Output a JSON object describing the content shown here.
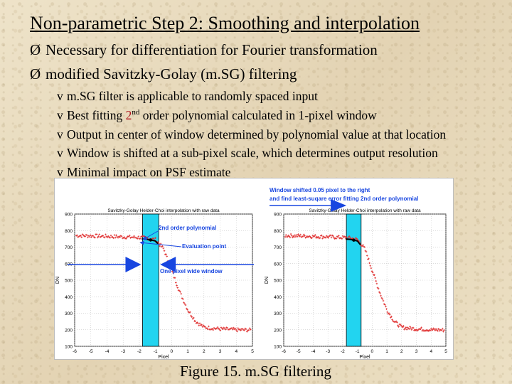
{
  "slide": {
    "title": "Non-parametric Step 2:  Smoothing and interpolation",
    "bullets": [
      {
        "marker": "Ø",
        "text": "Necessary for differentiation for Fourier transformation"
      },
      {
        "marker": "Ø",
        "text": "modified Savitzky-Golay (m.SG) filtering"
      }
    ],
    "subbullets": [
      {
        "marker": "v",
        "text": "m.SG filter is applicable to randomly spaced input"
      },
      {
        "marker": "v",
        "pre": "Best fitting ",
        "red": "2",
        "sup": "nd",
        "post": " order polynomial calculated in 1-pixel window"
      },
      {
        "marker": "v",
        "text": "Output in center of window determined by polynomial value at that location"
      },
      {
        "marker": "v",
        "text": "Window is shifted at a sub-pixel scale, which determines output resolution"
      },
      {
        "marker": "v",
        "text": "Minimal impact on PSF estimate"
      }
    ],
    "caption": "Figure 15. m.SG filtering"
  },
  "figure": {
    "top_annotation": [
      "Window shifted 0.05 pixel to the right",
      "and find least-suqare error fitting 2nd order polynomial"
    ],
    "left_annotations": {
      "poly": "2nd order polynomial",
      "eval": "Evaluation point",
      "window": "One pixel wide window"
    },
    "colors": {
      "data": "#e03030",
      "window": "#22d4f0",
      "annotation": "#1846e0",
      "fit": "#000000"
    }
  },
  "chart_data": [
    {
      "type": "scatter",
      "title": "Savitzky-Golay Helder-Choi interpolation with raw data",
      "xlabel": "Pixel",
      "ylabel": "DN",
      "xlim": [
        -6,
        5
      ],
      "ylim": [
        100,
        900
      ],
      "xticks": [
        "-6",
        "-5",
        "-4",
        "-3",
        "-2",
        "-1",
        "0",
        "1",
        "2",
        "3",
        "4",
        "5"
      ],
      "yticks": [
        "100",
        "200",
        "300",
        "400",
        "500",
        "600",
        "700",
        "800",
        "900"
      ],
      "grid": true,
      "window": [
        -1.8,
        -0.8
      ],
      "series": [
        {
          "x": [
            -6,
            -5,
            -4,
            -3,
            -2,
            -1.5,
            -1,
            -0.5,
            0,
            0.5,
            1,
            1.5,
            2,
            3,
            4,
            5
          ],
          "y": [
            770,
            768,
            765,
            762,
            758,
            755,
            745,
            690,
            560,
            430,
            320,
            250,
            215,
            205,
            200,
            198
          ]
        }
      ]
    },
    {
      "type": "scatter",
      "title": "Savitzky-Golay Helder-Choi interpolation with raw data",
      "xlabel": "Pixel",
      "ylabel": "DN",
      "xlim": [
        -6,
        5
      ],
      "ylim": [
        100,
        900
      ],
      "xticks": [
        "-6",
        "-5",
        "-4",
        "-3",
        "-2",
        "-1",
        "0",
        "1",
        "2",
        "3",
        "4",
        "5"
      ],
      "yticks": [
        "100",
        "200",
        "300",
        "400",
        "500",
        "600",
        "700",
        "800",
        "900"
      ],
      "grid": true,
      "window": [
        -1.75,
        -0.75
      ],
      "series": [
        {
          "x": [
            -6,
            -5,
            -4,
            -3,
            -2,
            -1.5,
            -1,
            -0.5,
            0,
            0.5,
            1,
            1.5,
            2,
            3,
            4,
            5
          ],
          "y": [
            770,
            768,
            765,
            762,
            758,
            755,
            745,
            690,
            560,
            430,
            320,
            250,
            215,
            205,
            200,
            198
          ]
        }
      ]
    }
  ]
}
